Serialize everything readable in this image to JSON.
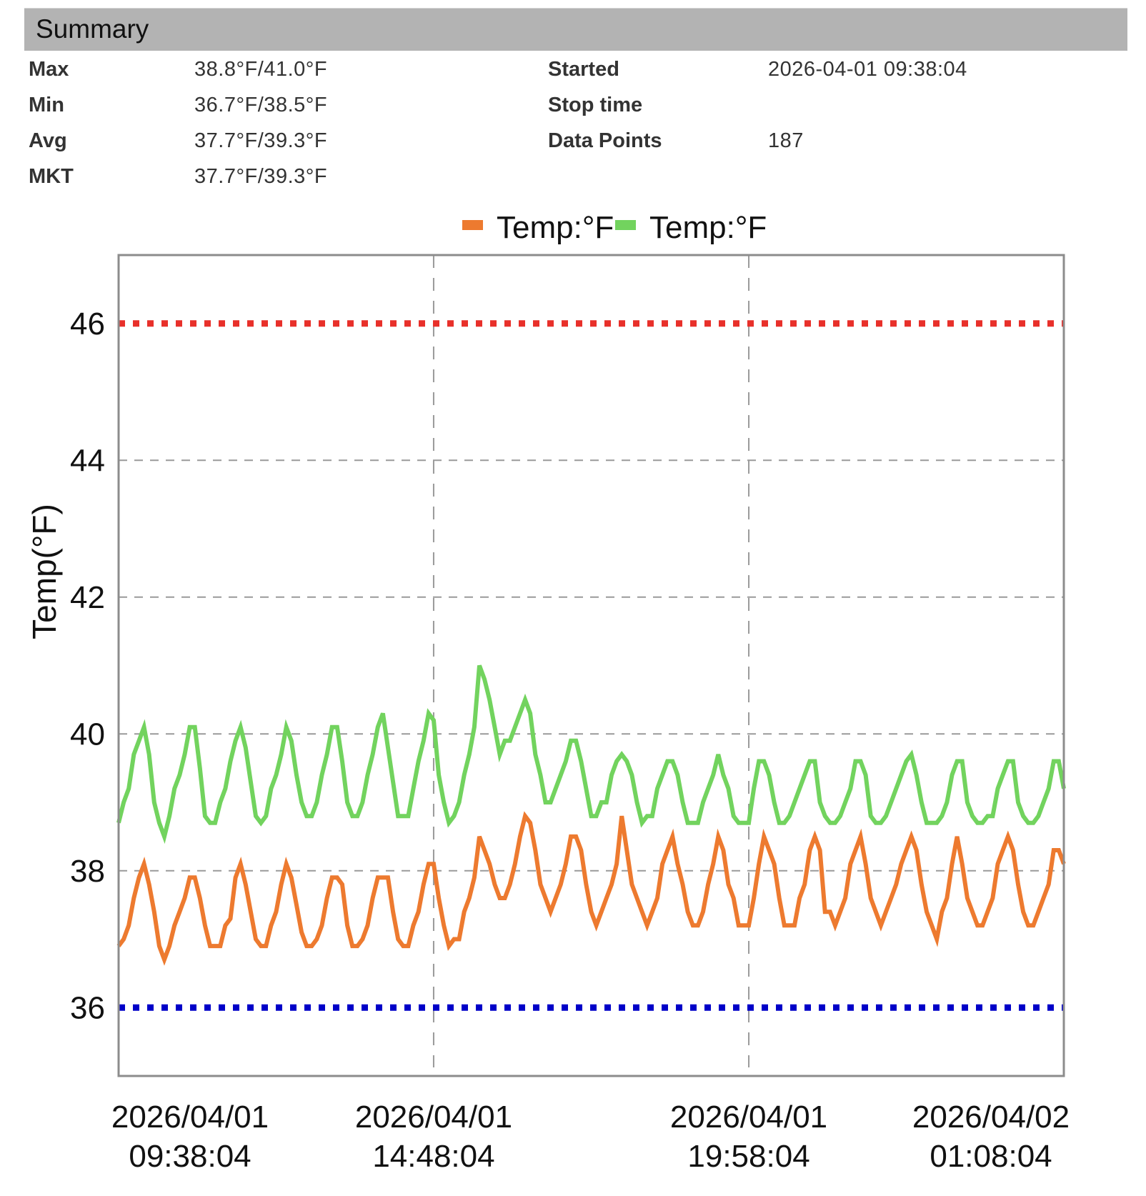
{
  "summary": {
    "title": "Summary",
    "left_rows": [
      {
        "label": "Max",
        "value": "38.8°F/41.0°F"
      },
      {
        "label": "Min",
        "value": "36.7°F/38.5°F"
      },
      {
        "label": "Avg",
        "value": "37.7°F/39.3°F"
      },
      {
        "label": "MKT",
        "value": "37.7°F/39.3°F"
      }
    ],
    "right_rows": [
      {
        "label": "Started",
        "value": "2026-04-01 09:38:04"
      },
      {
        "label": "Stop time",
        "value": ""
      },
      {
        "label": "Data Points",
        "value": "187"
      }
    ]
  },
  "chart_data": {
    "type": "line",
    "title": "",
    "xlabel": "",
    "ylabel": "Temp(°F)",
    "ylim": [
      35,
      47
    ],
    "yticks": [
      36,
      38,
      40,
      42,
      44,
      46
    ],
    "grid": true,
    "legend_position": "top",
    "x_start": "2026/04/01 09:38:04",
    "x_interval_minutes": 5,
    "num_points": 187,
    "x_ticks": [
      {
        "date": "2026/04/01",
        "time": "09:38:04",
        "frac": 0.0,
        "gridline": false
      },
      {
        "date": "2026/04/01",
        "time": "14:48:04",
        "frac": 0.3333,
        "gridline": true
      },
      {
        "date": "2026/04/01",
        "time": "19:58:04",
        "frac": 0.6667,
        "gridline": true
      },
      {
        "date": "2026/04/02",
        "time": "01:08:04",
        "frac": 1.0,
        "gridline": false
      }
    ],
    "thresholds": [
      {
        "name": "upper-limit",
        "value": 46,
        "color": "#e8302a"
      },
      {
        "name": "lower-limit",
        "value": 36,
        "color": "#0000c8"
      }
    ],
    "series": [
      {
        "name": "Temp:°F",
        "color": "#ed7a2f",
        "values": [
          36.9,
          37.0,
          37.2,
          37.6,
          37.9,
          38.1,
          37.8,
          37.4,
          36.9,
          36.7,
          36.9,
          37.2,
          37.4,
          37.6,
          37.9,
          37.9,
          37.6,
          37.2,
          36.9,
          36.9,
          36.9,
          37.2,
          37.3,
          37.9,
          38.1,
          37.8,
          37.4,
          37.0,
          36.9,
          36.9,
          37.2,
          37.4,
          37.8,
          38.1,
          37.9,
          37.5,
          37.1,
          36.9,
          36.9,
          37.0,
          37.2,
          37.6,
          37.9,
          37.9,
          37.8,
          37.2,
          36.9,
          36.9,
          37.0,
          37.2,
          37.6,
          37.9,
          37.9,
          37.9,
          37.4,
          37.0,
          36.9,
          36.9,
          37.2,
          37.4,
          37.8,
          38.1,
          38.1,
          37.6,
          37.2,
          36.9,
          37.0,
          37.0,
          37.4,
          37.6,
          37.9,
          38.5,
          38.3,
          38.1,
          37.8,
          37.6,
          37.6,
          37.8,
          38.1,
          38.5,
          38.8,
          38.7,
          38.3,
          37.8,
          37.6,
          37.4,
          37.6,
          37.8,
          38.1,
          38.5,
          38.5,
          38.3,
          37.8,
          37.4,
          37.2,
          37.4,
          37.6,
          37.8,
          38.1,
          38.8,
          38.3,
          37.8,
          37.6,
          37.4,
          37.2,
          37.4,
          37.6,
          38.1,
          38.3,
          38.5,
          38.1,
          37.8,
          37.4,
          37.2,
          37.2,
          37.4,
          37.8,
          38.1,
          38.5,
          38.3,
          37.8,
          37.6,
          37.2,
          37.2,
          37.2,
          37.6,
          38.1,
          38.5,
          38.3,
          38.1,
          37.6,
          37.2,
          37.2,
          37.2,
          37.6,
          37.8,
          38.3,
          38.5,
          38.3,
          37.4,
          37.4,
          37.2,
          37.4,
          37.6,
          38.1,
          38.3,
          38.5,
          38.1,
          37.6,
          37.4,
          37.2,
          37.4,
          37.6,
          37.8,
          38.1,
          38.3,
          38.5,
          38.3,
          37.8,
          37.4,
          37.2,
          37.0,
          37.4,
          37.6,
          38.1,
          38.5,
          38.1,
          37.6,
          37.4,
          37.2,
          37.2,
          37.4,
          37.6,
          38.1,
          38.3,
          38.5,
          38.3,
          37.8,
          37.4,
          37.2,
          37.2,
          37.4,
          37.6,
          37.8,
          38.3,
          38.3,
          38.1
        ]
      },
      {
        "name": "Temp:°F",
        "color": "#72d35e",
        "values": [
          38.7,
          39.0,
          39.2,
          39.7,
          39.9,
          40.1,
          39.7,
          39.0,
          38.7,
          38.5,
          38.8,
          39.2,
          39.4,
          39.7,
          40.1,
          40.1,
          39.5,
          38.8,
          38.7,
          38.7,
          39.0,
          39.2,
          39.6,
          39.9,
          40.1,
          39.8,
          39.3,
          38.8,
          38.7,
          38.8,
          39.2,
          39.4,
          39.7,
          40.1,
          39.9,
          39.4,
          39.0,
          38.8,
          38.8,
          39.0,
          39.4,
          39.7,
          40.1,
          40.1,
          39.6,
          39.0,
          38.8,
          38.8,
          39.0,
          39.4,
          39.7,
          40.1,
          40.3,
          39.8,
          39.3,
          38.8,
          38.8,
          38.8,
          39.2,
          39.6,
          39.9,
          40.3,
          40.2,
          39.4,
          39.0,
          38.7,
          38.8,
          39.0,
          39.4,
          39.7,
          40.1,
          41.0,
          40.8,
          40.5,
          40.1,
          39.7,
          39.9,
          39.9,
          40.1,
          40.3,
          40.5,
          40.3,
          39.7,
          39.4,
          39.0,
          39.0,
          39.2,
          39.4,
          39.6,
          39.9,
          39.9,
          39.6,
          39.2,
          38.8,
          38.8,
          39.0,
          39.0,
          39.4,
          39.6,
          39.7,
          39.6,
          39.4,
          39.0,
          38.7,
          38.8,
          38.8,
          39.2,
          39.4,
          39.6,
          39.6,
          39.4,
          39.0,
          38.7,
          38.7,
          38.7,
          39.0,
          39.2,
          39.4,
          39.7,
          39.4,
          39.2,
          38.8,
          38.7,
          38.7,
          38.7,
          39.2,
          39.6,
          39.6,
          39.4,
          39.0,
          38.7,
          38.7,
          38.8,
          39.0,
          39.2,
          39.4,
          39.6,
          39.6,
          39.0,
          38.8,
          38.7,
          38.7,
          38.8,
          39.0,
          39.2,
          39.6,
          39.6,
          39.4,
          38.8,
          38.7,
          38.7,
          38.8,
          39.0,
          39.2,
          39.4,
          39.6,
          39.7,
          39.4,
          39.0,
          38.7,
          38.7,
          38.7,
          38.8,
          39.0,
          39.4,
          39.6,
          39.6,
          39.0,
          38.8,
          38.7,
          38.7,
          38.8,
          38.8,
          39.2,
          39.4,
          39.6,
          39.6,
          39.0,
          38.8,
          38.7,
          38.7,
          38.8,
          39.0,
          39.2,
          39.6,
          39.6,
          39.2
        ]
      }
    ]
  }
}
